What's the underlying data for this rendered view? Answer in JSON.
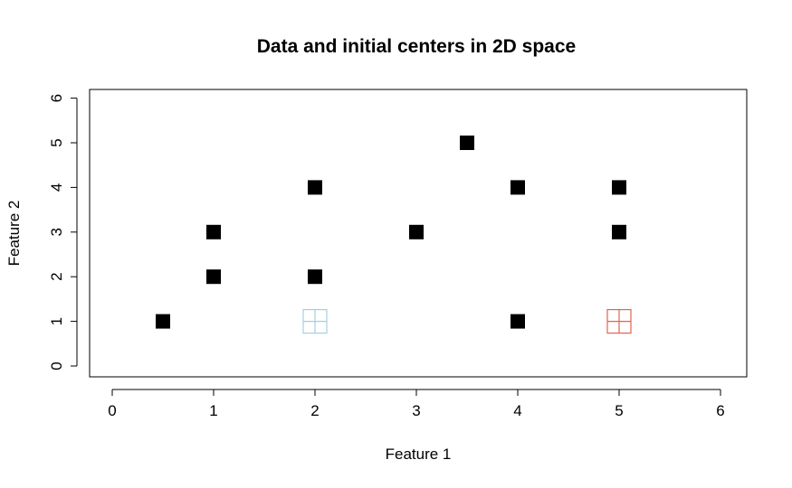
{
  "chart_data": {
    "type": "scatter",
    "title": "Data and initial centers in 2D space",
    "xlabel": "Feature 1",
    "ylabel": "Feature 2",
    "xlim": [
      0,
      6
    ],
    "ylim": [
      0,
      6
    ],
    "xticks": [
      "0",
      "1",
      "2",
      "3",
      "4",
      "5",
      "6"
    ],
    "yticks": [
      "0",
      "1",
      "2",
      "3",
      "4",
      "5",
      "6"
    ],
    "grid": false,
    "series": [
      {
        "marker": "filled-square",
        "color": "#000000",
        "x": [
          0.5,
          1,
          1,
          2,
          2,
          3,
          3.5,
          4,
          4,
          5,
          5
        ],
        "y": [
          1,
          2,
          3,
          2,
          4,
          3,
          5,
          4,
          1,
          4,
          3
        ]
      },
      {
        "marker": "squared-plus",
        "color": "#a6cee3",
        "x": [
          2
        ],
        "y": [
          1
        ]
      },
      {
        "marker": "squared-plus",
        "color": "#e3634f",
        "x": [
          5
        ],
        "y": [
          1
        ]
      }
    ]
  }
}
